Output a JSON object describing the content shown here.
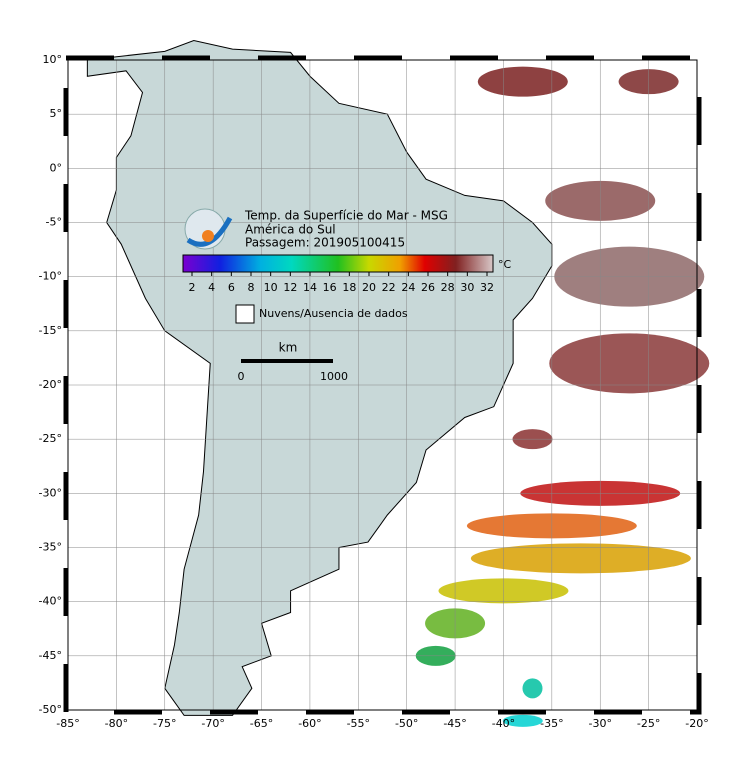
{
  "title": {
    "line1": "Temp. da Superfície do Mar - MSG",
    "line2": "América do Sul",
    "line3": "Passagem: 201905100415"
  },
  "colorbar": {
    "ticks": [
      2,
      4,
      6,
      8,
      10,
      12,
      14,
      16,
      18,
      20,
      22,
      24,
      26,
      28,
      30,
      32
    ],
    "unit": "°C"
  },
  "legend": {
    "label": "Nuvens/Ausencia de dados"
  },
  "scale_bar": {
    "unit": "km",
    "start": "0",
    "end": "1000"
  },
  "map": {
    "lon_ticks": [
      {
        "value": -85,
        "label": "-85°"
      },
      {
        "value": -80,
        "label": "-80°"
      },
      {
        "value": -75,
        "label": "-75°"
      },
      {
        "value": -70,
        "label": "-70°"
      },
      {
        "value": -65,
        "label": "-65°"
      },
      {
        "value": -60,
        "label": "-60°"
      },
      {
        "value": -55,
        "label": "-55°"
      },
      {
        "value": -50,
        "label": "-50°"
      },
      {
        "value": -45,
        "label": "-45°"
      },
      {
        "value": -40,
        "label": "-40°"
      },
      {
        "value": -35,
        "label": "-35°"
      },
      {
        "value": -30,
        "label": "-30°"
      },
      {
        "value": -25,
        "label": "-25°"
      },
      {
        "value": -20,
        "label": "-20°"
      }
    ],
    "lat_ticks": [
      {
        "value": 10,
        "label": "10°"
      },
      {
        "value": 5,
        "label": "5°"
      },
      {
        "value": 0,
        "label": "0°"
      },
      {
        "value": -5,
        "label": "-5°"
      },
      {
        "value": -10,
        "label": "-10°"
      },
      {
        "value": -15,
        "label": "-15°"
      },
      {
        "value": -20,
        "label": "-20°"
      },
      {
        "value": -25,
        "label": "-25°"
      },
      {
        "value": -30,
        "label": "-30°"
      },
      {
        "value": -35,
        "label": "-35°"
      },
      {
        "value": -40,
        "label": "-40°"
      },
      {
        "value": -45,
        "label": "-45°"
      },
      {
        "value": -50,
        "label": "-50°"
      }
    ]
  }
}
